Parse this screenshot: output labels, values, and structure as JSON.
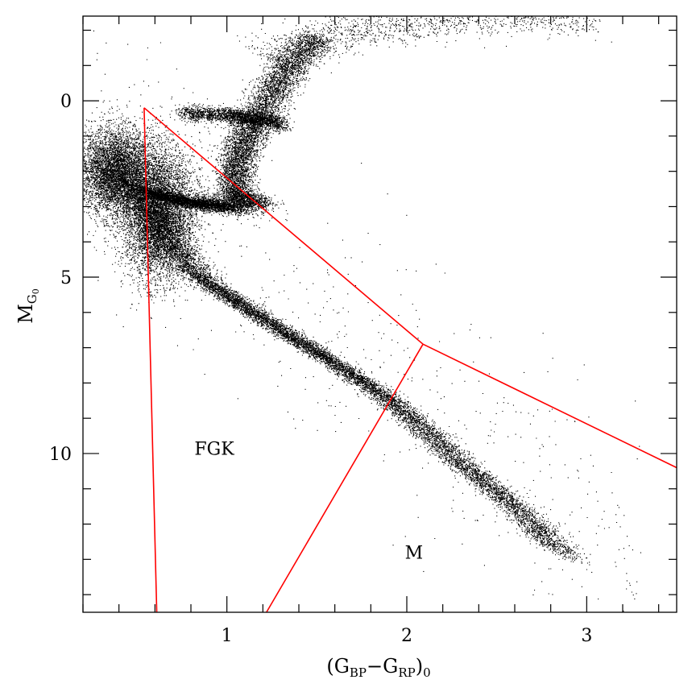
{
  "chart_data": {
    "type": "scatter",
    "title": "",
    "xlabel": "(G_BP − G_RP)_0",
    "xlabel_parts": {
      "open": "(G",
      "sub1": "BP",
      "minus": "−G",
      "sub2": "RP",
      "close": ")",
      "sub3": "0"
    },
    "ylabel": "M_G0",
    "ylabel_parts": {
      "main": "M",
      "sub": "G",
      "subsub": "0"
    },
    "xlim": [
      0.2,
      3.5
    ],
    "ylim": [
      14.5,
      -2.4
    ],
    "y_inverted": true,
    "x_ticks": [
      1,
      2,
      3
    ],
    "x_tick_labels": [
      "1",
      "2",
      "3"
    ],
    "y_ticks": [
      0,
      5,
      10
    ],
    "y_tick_labels": [
      "0",
      "5",
      "10"
    ],
    "x_minor_step": 0.2,
    "y_minor_step": 1,
    "grid": false,
    "colors": {
      "points": "#000000",
      "boundary": "#ff0000",
      "axes": "#000000"
    },
    "regions": [
      {
        "name": "FGK",
        "label": "FGK",
        "label_at": [
          0.93,
          9.85
        ]
      },
      {
        "name": "M",
        "label": "M",
        "label_at": [
          2.04,
          12.8
        ]
      }
    ],
    "boundaries": [
      {
        "name": "fgk-left-edge",
        "points": [
          [
            0.54,
            0.2
          ],
          [
            0.61,
            14.5
          ]
        ]
      },
      {
        "name": "fgk-upper-edge",
        "points": [
          [
            0.54,
            0.2
          ],
          [
            2.09,
            6.9
          ]
        ]
      },
      {
        "name": "fgk-m-divider",
        "points": [
          [
            2.09,
            6.9
          ],
          [
            1.22,
            14.5
          ]
        ]
      },
      {
        "name": "m-upper-edge",
        "points": [
          [
            2.09,
            6.9
          ],
          [
            3.5,
            10.4
          ]
        ]
      }
    ],
    "series": [
      {
        "name": "main-sequence-core",
        "count": 15000,
        "x_mean": 0.62,
        "y_mean": 3.2,
        "x_sd": 0.1,
        "y_sd": 0.9
      },
      {
        "name": "main-sequence",
        "count": 14000,
        "path": [
          [
            0.45,
            2.3
          ],
          [
            0.65,
            3.8
          ],
          [
            0.85,
            5.0
          ],
          [
            1.05,
            5.7
          ],
          [
            1.3,
            6.5
          ],
          [
            1.55,
            7.3
          ],
          [
            1.8,
            8.1
          ],
          [
            2.05,
            9.1
          ],
          [
            2.3,
            10.3
          ],
          [
            2.6,
            11.5
          ],
          [
            2.85,
            12.8
          ]
        ],
        "spread": [
          0.45,
          0.6
        ]
      },
      {
        "name": "turnoff-blue-plume",
        "count": 6000,
        "x_mean": 0.38,
        "y_mean": 2.0,
        "x_sd": 0.1,
        "y_sd": 0.6
      },
      {
        "name": "subgiant-bridge",
        "count": 4500,
        "path": [
          [
            0.55,
            2.6
          ],
          [
            0.8,
            2.9
          ],
          [
            1.0,
            3.0
          ],
          [
            1.15,
            2.7
          ]
        ],
        "spread": [
          0.35,
          0.3
        ]
      },
      {
        "name": "red-giant-branch",
        "count": 5500,
        "path": [
          [
            1.05,
            2.7
          ],
          [
            1.05,
            2.0
          ],
          [
            1.08,
            1.3
          ],
          [
            1.15,
            0.6
          ],
          [
            1.25,
            -0.2
          ],
          [
            1.35,
            -1.0
          ],
          [
            1.5,
            -1.8
          ]
        ],
        "spread": [
          0.25,
          0.3
        ]
      },
      {
        "name": "red-clump",
        "count": 2200,
        "path": [
          [
            0.75,
            0.35
          ],
          [
            1.0,
            0.42
          ],
          [
            1.15,
            0.5
          ],
          [
            1.3,
            0.65
          ]
        ],
        "spread": [
          0.12,
          0.3
        ]
      },
      {
        "name": "upper-giants",
        "count": 1400,
        "path": [
          [
            1.2,
            -1.2
          ],
          [
            1.7,
            -2.0
          ],
          [
            2.3,
            -2.3
          ],
          [
            3.0,
            -2.4
          ]
        ],
        "spread": [
          0.4,
          0.6
        ]
      },
      {
        "name": "field-scatter",
        "count": 600,
        "x_range": [
          0.22,
          3.3
        ],
        "y_range": [
          -2.3,
          13.5
        ]
      }
    ]
  }
}
